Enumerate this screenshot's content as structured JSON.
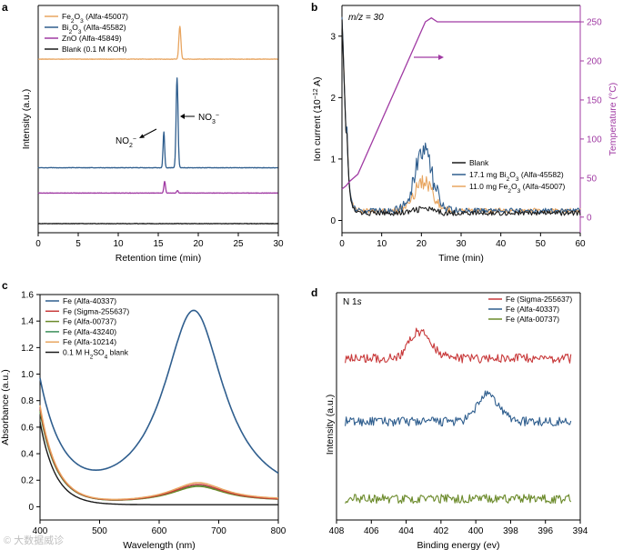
{
  "watermark": "© 大数据威诊",
  "chart_data": [
    {
      "panel": "a",
      "type": "line",
      "xlabel": "Retention time (min)",
      "ylabel": "Intensity (a.u.)",
      "xlim": [
        0,
        30
      ],
      "xticks": [
        0,
        5,
        10,
        15,
        20,
        25,
        30
      ],
      "yticks": [],
      "legend_position": "top-left",
      "annotations": [
        {
          "text": "NO2−",
          "main": "NO",
          "sub": "2",
          "sup": "−",
          "x": 15.6
        },
        {
          "text": "NO3−",
          "main": "NO",
          "sub": "3",
          "sup": "−",
          "x": 17.4
        }
      ],
      "series": [
        {
          "name": "Fe2O3 (Alfa-45007)",
          "label_main": "Fe",
          "label_sub1": "2",
          "label_mid": "O",
          "label_sub2": "3",
          "label_rest": " (Alfa-45007)",
          "color": "#e8a560",
          "baseline": 0.78,
          "peaks": [
            {
              "x": 17.7,
              "h": 0.155,
              "w": 0.18
            }
          ]
        },
        {
          "name": "Bi2O3 (Alfa-45582)",
          "label_main": "Bi",
          "label_sub1": "2",
          "label_mid": "O",
          "label_sub2": "3",
          "label_rest": " (Alfa-45582)",
          "color": "#2f5e8e",
          "baseline": 0.265,
          "peaks": [
            {
              "x": 15.7,
              "h": 0.17,
              "w": 0.14
            },
            {
              "x": 17.35,
              "h": 0.425,
              "w": 0.17
            }
          ]
        },
        {
          "name": "ZnO (Alfa-45849)",
          "label_main": "ZnO (Alfa-45849)",
          "label_sub1": "",
          "label_mid": "",
          "label_sub2": "",
          "label_rest": "",
          "color": "#a03aa3",
          "baseline": 0.145,
          "peaks": [
            {
              "x": 15.8,
              "h": 0.055,
              "w": 0.14
            },
            {
              "x": 17.4,
              "h": 0.012,
              "w": 0.14
            }
          ]
        },
        {
          "name": "Blank (0.1 M KOH)",
          "label_main": "Blank (0.1 M KOH)",
          "label_sub1": "",
          "label_mid": "",
          "label_sub2": "",
          "label_rest": "",
          "color": "#1a1a1a",
          "baseline": 0.0,
          "peaks": []
        }
      ]
    },
    {
      "panel": "b",
      "type": "line",
      "title": "m/z = 30",
      "xlabel": "Time (min)",
      "ylabel": "Ion current (10−12 A)",
      "ylabel_main": "Ion current (10",
      "ylabel_sup": "−12",
      "ylabel_end": " A)",
      "y2label": "Temperature (°C)",
      "xlim": [
        0,
        60
      ],
      "ylim": [
        -0.2,
        3.5
      ],
      "y2lim": [
        -20,
        271
      ],
      "xticks": [
        0,
        10,
        20,
        30,
        40,
        50,
        60
      ],
      "yticks": [
        0,
        1,
        2,
        3
      ],
      "y2ticks": [
        0,
        50,
        100,
        150,
        200,
        250
      ],
      "legend_position": "center-right",
      "series": [
        {
          "name": "Blank",
          "label_main": "Blank",
          "label_sub1": "",
          "label_mid": "",
          "label_sub2": "",
          "label_rest": "",
          "color": "#1a1a1a",
          "axis": "left",
          "bump": 0.07
        },
        {
          "name": "17.1 mg Bi2O3 (Alfa-45582)",
          "label_main": "17.1 mg Bi",
          "label_sub1": "2",
          "label_mid": "O",
          "label_sub2": "3",
          "label_rest": " (Alfa-45582)",
          "color": "#2f5e8e",
          "axis": "left",
          "bump": 0.93
        },
        {
          "name": "11.0 mg Fe2O3 (Alfa-45007)",
          "label_main": "11.0 mg Fe",
          "label_sub1": "2",
          "label_mid": "O",
          "label_sub2": "3",
          "label_rest": " (Alfa-45007)",
          "color": "#e8a560",
          "axis": "left",
          "bump": 0.47
        },
        {
          "name": "Temperature",
          "color": "#a03aa3",
          "axis": "right",
          "x": [
            0,
            1,
            2,
            4,
            21,
            22.5,
            24,
            60
          ],
          "y": [
            36,
            40,
            46,
            55,
            250,
            255,
            250,
            250
          ]
        }
      ]
    },
    {
      "panel": "c",
      "type": "line",
      "xlabel": "Wavelength (nm)",
      "ylabel": "Absorbance (a.u.)",
      "xlim": [
        400,
        800
      ],
      "ylim": [
        -0.1,
        1.6
      ],
      "xticks": [
        400,
        500,
        600,
        700,
        800
      ],
      "yticks": [
        0,
        0.2,
        0.4,
        0.6,
        0.8,
        1.0,
        1.2,
        1.4,
        1.6
      ],
      "yticklabels": [
        "0",
        "0.2",
        "0.4",
        "0.6",
        "0.8",
        "1.0",
        "1.2",
        "1.4",
        "1.6"
      ],
      "legend_position": "top-left",
      "series": [
        {
          "name": "Fe (Alfa-40337)",
          "label_main": "Fe (Alfa-40337)",
          "label_sub1": "",
          "label_mid": "",
          "label_sub2": "",
          "label_rest": "",
          "color": "#2f5e8e",
          "start": 0.93,
          "peak": 1.46,
          "wing": 0.22
        },
        {
          "name": "Fe (Sigma-255637)",
          "label_main": "Fe (Sigma-255637)",
          "label_sub1": "",
          "label_mid": "",
          "label_sub2": "",
          "label_rest": "",
          "color": "#c8393a",
          "start": 0.74,
          "peak": 0.135,
          "wing": 0.02
        },
        {
          "name": "Fe (Alfa-00737)",
          "label_main": "Fe (Alfa-00737)",
          "label_sub1": "",
          "label_mid": "",
          "label_sub2": "",
          "label_rest": "",
          "color": "#6b8a2a",
          "start": 0.72,
          "peak": 0.12,
          "wing": 0.02
        },
        {
          "name": "Fe (Alfa-43240)",
          "label_main": "Fe (Alfa-43240)",
          "label_sub1": "",
          "label_mid": "",
          "label_sub2": "",
          "label_rest": "",
          "color": "#3a8f5a",
          "start": 0.71,
          "peak": 0.125,
          "wing": 0.02
        },
        {
          "name": "Fe (Alfa-10214)",
          "label_main": "Fe (Alfa-10214)",
          "label_sub1": "",
          "label_mid": "",
          "label_sub2": "",
          "label_rest": "",
          "color": "#e8a560",
          "start": 0.76,
          "peak": 0.145,
          "wing": 0.025
        },
        {
          "name": "0.1 M H2SO4 blank",
          "label_main": "0.1 M H",
          "label_sub1": "2",
          "label_mid": "SO",
          "label_sub2": "4",
          "label_rest": " blank",
          "color": "#1a1a1a",
          "start": 0.64,
          "peak": 0.0,
          "wing": 0.0
        }
      ]
    },
    {
      "panel": "d",
      "type": "line",
      "title": "N 1s",
      "title_main": "N 1",
      "title_italic": "s",
      "xlabel": "Binding energy (ev)",
      "ylabel": "Intensity (a.u.)",
      "xlim": [
        408,
        394
      ],
      "xticks": [
        408,
        406,
        404,
        402,
        400,
        398,
        396,
        394
      ],
      "yticks": [],
      "legend_position": "top-right",
      "series": [
        {
          "name": "Fe (Sigma-255637)",
          "label_main": "Fe (Sigma-255637)",
          "label_sub1": "",
          "label_mid": "",
          "label_sub2": "",
          "label_rest": "",
          "color": "#c8393a",
          "baseline": 0.74,
          "peak_x": 403.3,
          "peak_h": 0.13
        },
        {
          "name": "Fe (Alfa-40337)",
          "label_main": "Fe (Alfa-40337)",
          "label_sub1": "",
          "label_mid": "",
          "label_sub2": "",
          "label_rest": "",
          "color": "#2f5e8e",
          "baseline": 0.43,
          "peak_x": 399.4,
          "peak_h": 0.13
        },
        {
          "name": "Fe (Alfa-00737)",
          "label_main": "Fe (Alfa-00737)",
          "label_sub1": "",
          "label_mid": "",
          "label_sub2": "",
          "label_rest": "",
          "color": "#6b8a2a",
          "baseline": 0.05,
          "peak_x": null,
          "peak_h": 0
        }
      ]
    }
  ]
}
